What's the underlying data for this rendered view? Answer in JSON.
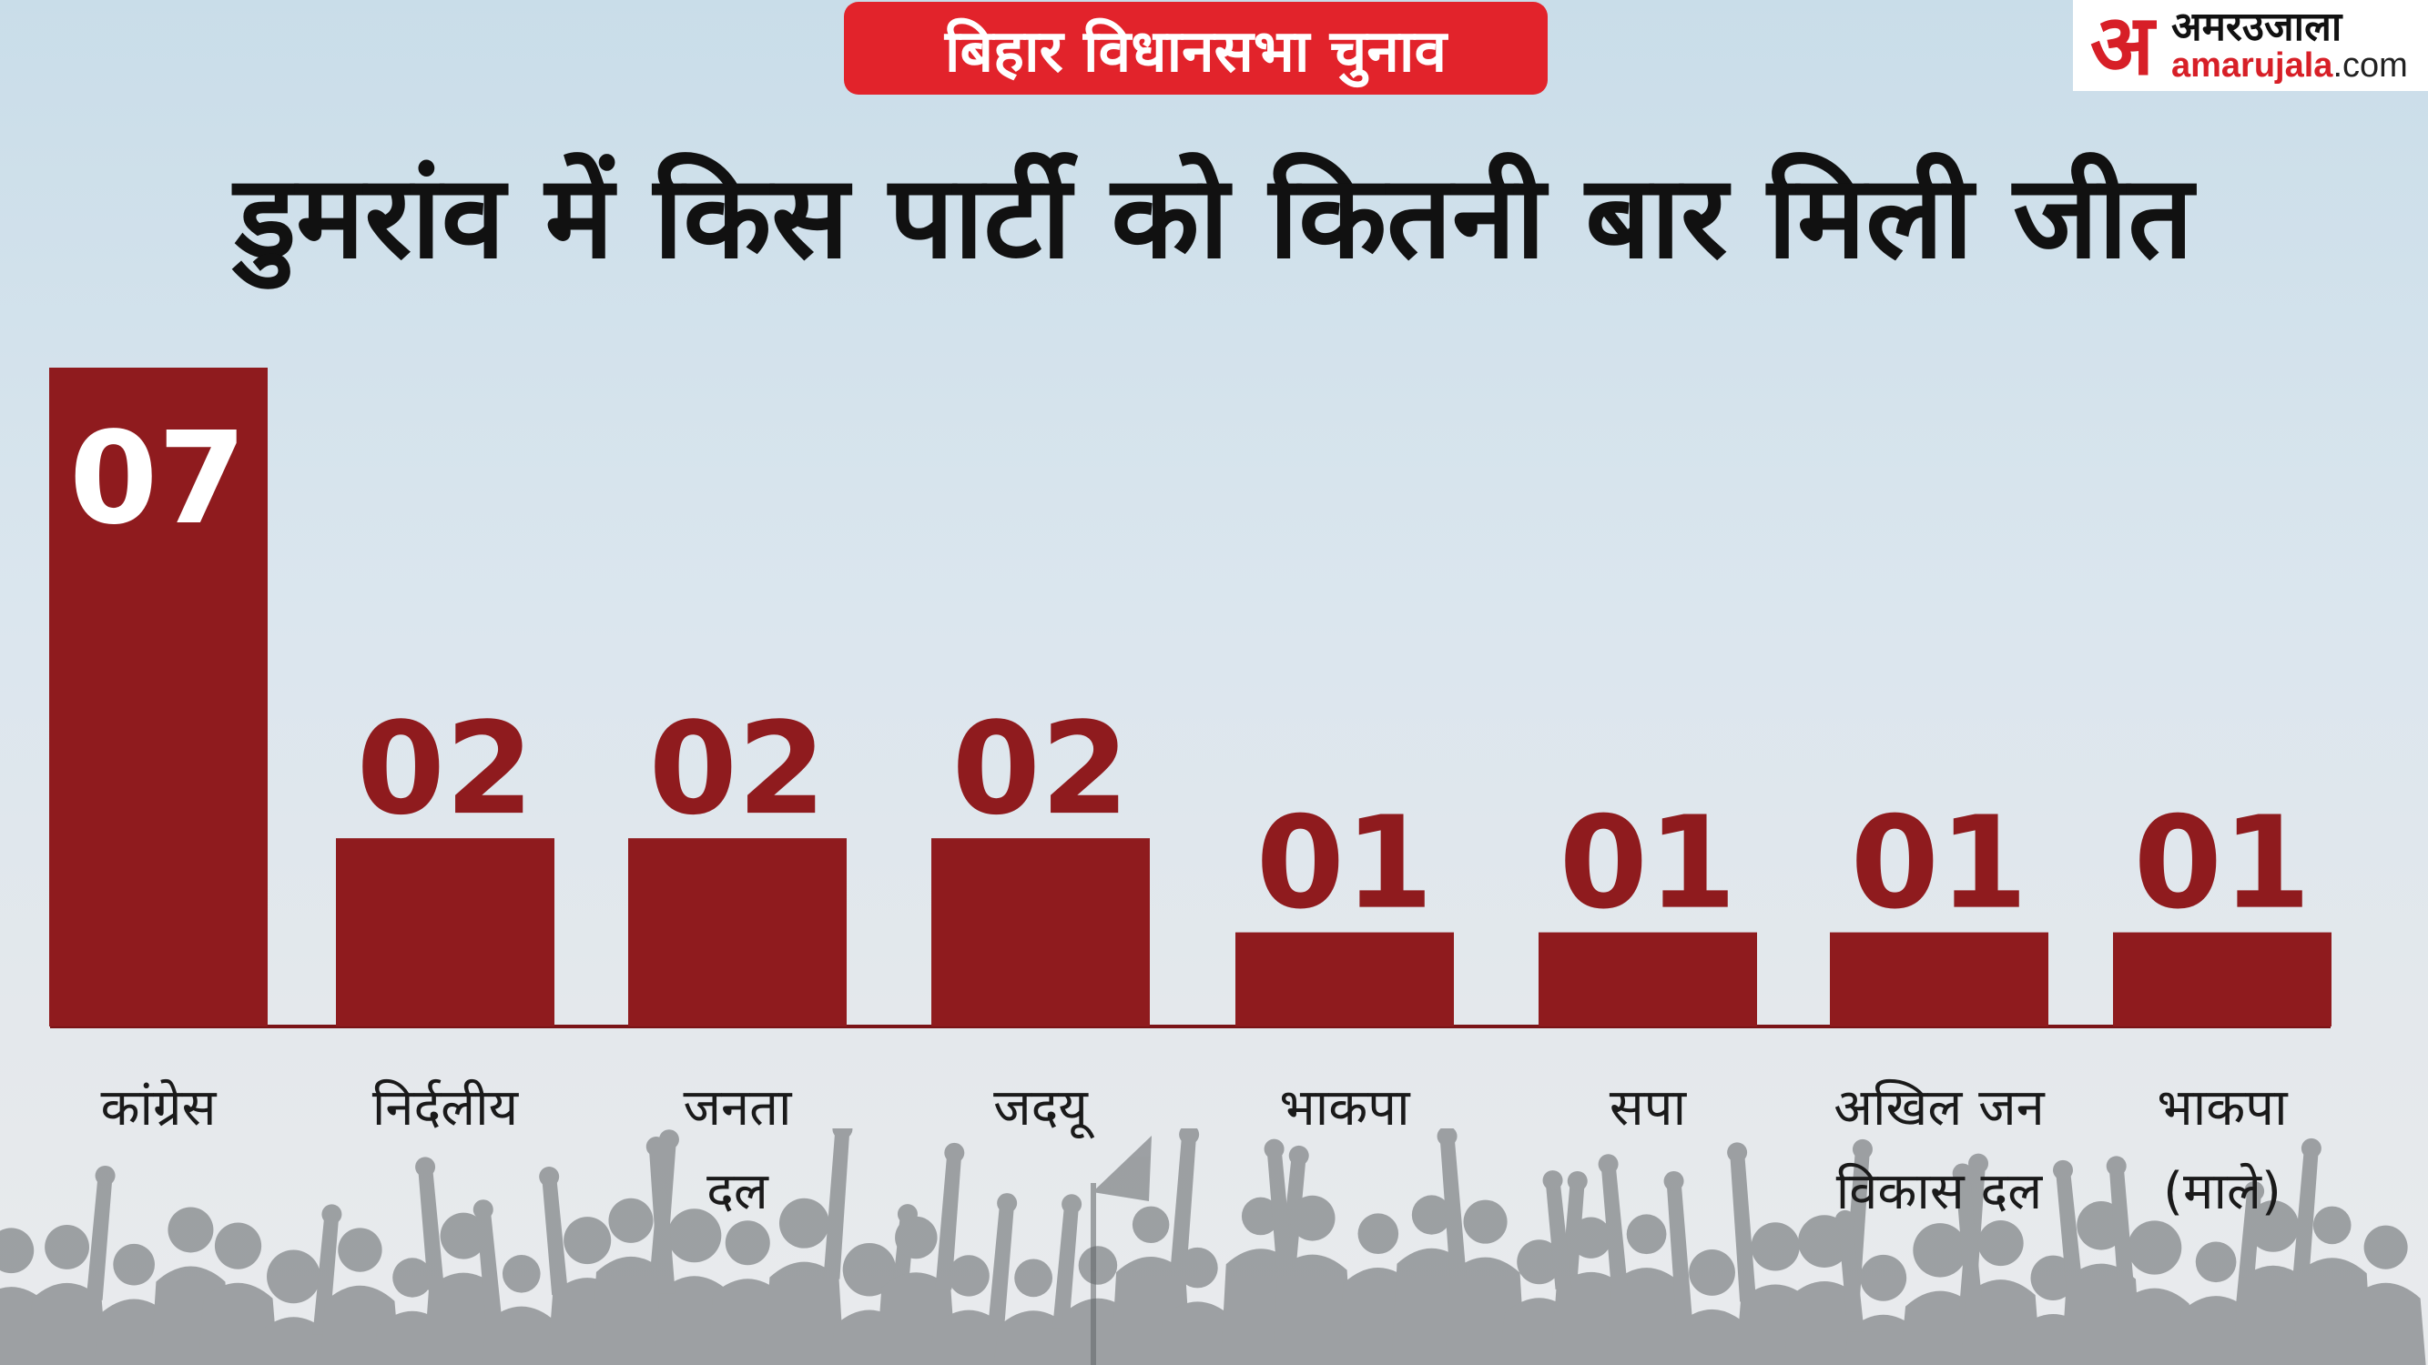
{
  "header": {
    "badge": "बिहार विधानसभा चुनाव",
    "logo_mark": "अ",
    "logo_hindi": "अमरउजाला",
    "logo_brand": "amarujala",
    "logo_domain": ".com"
  },
  "title": "डुमरांव में किस पार्टी को कितनी बार मिली जीत",
  "colors": {
    "bar": "#8f1b1e",
    "value_on_bar": "#ffffff",
    "value_above_bar": "#8f1b1e",
    "badge": "#e2232b",
    "axis": "#7a1417"
  },
  "chart_data": {
    "type": "bar",
    "categories": [
      "कांग्रेस",
      "निर्दलीय",
      "जनता दल",
      "जदयू",
      "भाकपा",
      "सपा",
      "अखिल जन विकास दल",
      "भाकपा (माले)"
    ],
    "category_lines": [
      [
        "कांग्रेस"
      ],
      [
        "निर्दलीय"
      ],
      [
        "जनता",
        "दल"
      ],
      [
        "जदयू"
      ],
      [
        "भाकपा"
      ],
      [
        "सपा"
      ],
      [
        "अखिल जन",
        "विकास दल"
      ],
      [
        "भाकपा",
        "(माले)"
      ]
    ],
    "values": [
      7,
      2,
      2,
      2,
      1,
      1,
      1,
      1
    ],
    "value_labels": [
      "07",
      "02",
      "02",
      "02",
      "01",
      "01",
      "01",
      "01"
    ],
    "title": "डुमरांव में किस पार्टी को कितनी बार मिली जीत",
    "xlabel": "",
    "ylabel": "",
    "ylim": [
      0,
      7
    ],
    "grid": false,
    "legend": "none"
  }
}
